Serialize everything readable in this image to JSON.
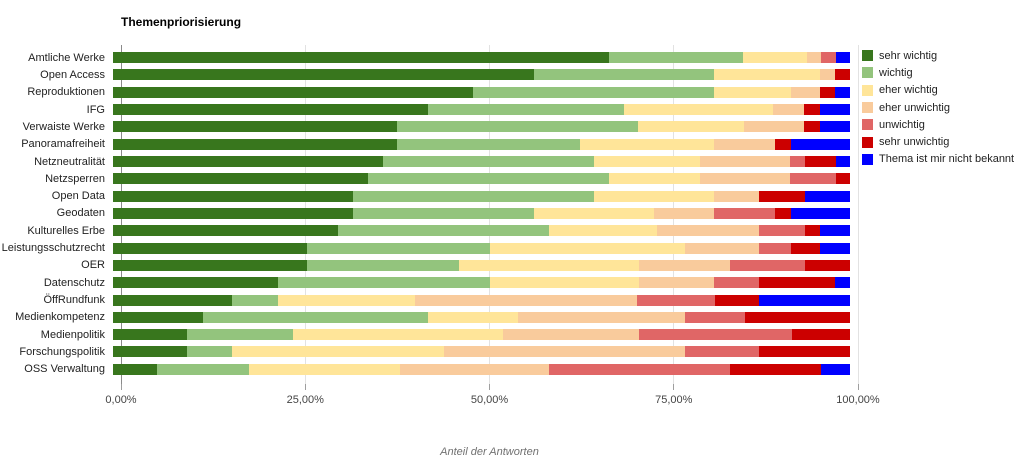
{
  "chart_data": {
    "type": "bar",
    "stacked": true,
    "orientation": "horizontal",
    "title": "Themenpriorisierung",
    "xlabel": "Anteil der Antworten",
    "ylabel": "",
    "xlim": [
      0,
      100
    ],
    "x_ticks": [
      "0,00%",
      "25,00%",
      "50,00%",
      "75,00%",
      "100,00%"
    ],
    "grid": true,
    "legend_position": "right",
    "categories": [
      "Amtliche Werke",
      "Open Access",
      "Reproduktionen",
      "IFG",
      "Verwaiste Werke",
      "Panoramafreiheit",
      "Netzneutralität",
      "Netzsperren",
      "Open Data",
      "Geodaten",
      "Kulturelles Erbe",
      "Leistungsschutzrecht",
      "OER",
      "Datenschutz",
      "ÖffRundfunk",
      "Medienkompetenz",
      "Medienpolitik",
      "Forschungspolitik",
      "OSS Verwaltung"
    ],
    "series": [
      {
        "name": "sehr wichtig",
        "color": "#38761d",
        "values": [
          67.3,
          57.1,
          48.8,
          42.8,
          38.6,
          38.6,
          36.7,
          34.6,
          32.5,
          32.5,
          30.5,
          26.3,
          26.3,
          22.4,
          16.2,
          12.2,
          10.1,
          10.1,
          6.0
        ]
      },
      {
        "name": "wichtig",
        "color": "#93c47d",
        "values": [
          18.2,
          24.5,
          32.8,
          26.5,
          32.7,
          24.7,
          28.5,
          32.7,
          32.7,
          24.6,
          28.7,
          24.8,
          20.6,
          28.7,
          6.2,
          30.6,
          14.3,
          6.1,
          12.4
        ]
      },
      {
        "name": "eher wichtig",
        "color": "#ffe599",
        "values": [
          8.6,
          14.3,
          10.4,
          20.3,
          14.3,
          18.3,
          14.5,
          12.4,
          16.4,
          16.3,
          14.6,
          26.5,
          24.5,
          20.3,
          18.6,
          12.1,
          28.5,
          28.7,
          20.6
        ]
      },
      {
        "name": "eher unwichtig",
        "color": "#f9cb9c",
        "values": [
          1.9,
          2.1,
          4.0,
          4.2,
          8.2,
          8.2,
          12.1,
          12.1,
          6.1,
          8.2,
          13.9,
          10.1,
          12.3,
          10.2,
          30.1,
          22.7,
          18.5,
          32.7,
          20.2
        ]
      },
      {
        "name": "unwichtig",
        "color": "#e06666",
        "values": [
          2.1,
          0,
          0,
          0,
          0,
          0,
          2.1,
          6.3,
          0,
          8.2,
          6.2,
          4.3,
          10.2,
          6.1,
          10.6,
          8.2,
          20.7,
          10.1,
          24.5
        ]
      },
      {
        "name": "sehr unwichtig",
        "color": "#cc0000",
        "values": [
          0,
          2.0,
          2.0,
          2.2,
          2.2,
          2.2,
          4.2,
          1.9,
          6.2,
          2.2,
          2.1,
          4.0,
          6.1,
          10.2,
          6.0,
          14.2,
          7.9,
          12.3,
          12.4
        ]
      },
      {
        "name": "Thema ist mir nicht bekannt",
        "color": "#0000ff",
        "values": [
          1.9,
          0,
          2.0,
          4.0,
          4.0,
          8.0,
          1.9,
          0,
          6.1,
          8.0,
          4.0,
          4.0,
          0,
          2.1,
          12.3,
          0,
          0,
          0,
          3.9
        ]
      }
    ]
  }
}
